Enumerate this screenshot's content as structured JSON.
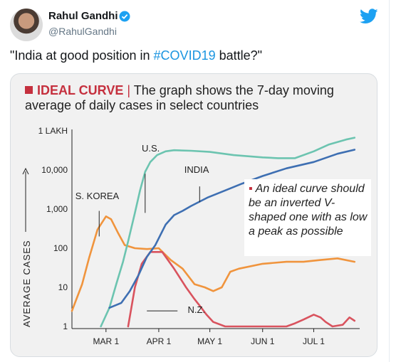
{
  "tweet": {
    "author_name": "Rahul Gandhi",
    "handle": "@RahulGandhi",
    "text_before": "\"India at good position in ",
    "hashtag": "#COVID19",
    "text_after": " battle?\""
  },
  "icons": {
    "avatar": "author-avatar",
    "verified": "verified-badge-icon",
    "platform": "twitter-bird-icon"
  },
  "chart_data": {
    "type": "line",
    "title": "IDEAL CURVE",
    "title_rest": "The graph shows the 7-day moving",
    "subtitle": "average of daily cases in select countries",
    "ylabel": "AVERAGE CASES",
    "yscale": "log",
    "ylim": [
      1,
      100000
    ],
    "yticks": [
      "1 LAKH",
      "10,000",
      "1,000",
      "100",
      "10",
      "1"
    ],
    "ytick_values": [
      100000,
      10000,
      1000,
      100,
      10,
      1
    ],
    "xticks": [
      "MAR 1",
      "APR 1",
      "MAY 1",
      "JUN 1",
      "JUL 1"
    ],
    "xlim": [
      "2020-02-10",
      "2020-07-28"
    ],
    "grid": false,
    "note": "An ideal curve should be an inverted V-shaped one with as low a peak as possible",
    "series": [
      {
        "name": "U.S.",
        "color": "#6cc4b0",
        "x": [
          "2020-02-27",
          "2020-03-03",
          "2020-03-07",
          "2020-03-11",
          "2020-03-14",
          "2020-03-18",
          "2020-03-21",
          "2020-03-24",
          "2020-03-27",
          "2020-03-31",
          "2020-04-05",
          "2020-04-10",
          "2020-04-20",
          "2020-05-01",
          "2020-05-15",
          "2020-06-01",
          "2020-06-10",
          "2020-06-20",
          "2020-07-01",
          "2020-07-10",
          "2020-07-20",
          "2020-07-25"
        ],
        "values": [
          1,
          3,
          12,
          45,
          150,
          800,
          3000,
          9000,
          16000,
          24000,
          30000,
          32000,
          31000,
          29000,
          24000,
          21000,
          20000,
          20000,
          30000,
          45000,
          60000,
          67000
        ]
      },
      {
        "name": "S. KOREA",
        "color": "#f0943d",
        "x": [
          "2020-02-10",
          "2020-02-16",
          "2020-02-20",
          "2020-02-25",
          "2020-03-01",
          "2020-03-04",
          "2020-03-08",
          "2020-03-12",
          "2020-03-18",
          "2020-03-25",
          "2020-04-01",
          "2020-04-08",
          "2020-04-15",
          "2020-04-22",
          "2020-04-28",
          "2020-05-03",
          "2020-05-08",
          "2020-05-13",
          "2020-05-18",
          "2020-06-01",
          "2020-06-15",
          "2020-06-25",
          "2020-07-05",
          "2020-07-15",
          "2020-07-25"
        ],
        "values": [
          2.5,
          12,
          55,
          300,
          650,
          550,
          250,
          120,
          100,
          95,
          100,
          50,
          30,
          12,
          10,
          8,
          10,
          25,
          30,
          40,
          45,
          45,
          50,
          55,
          45
        ]
      },
      {
        "name": "INDIA",
        "color": "#3e6fb2",
        "x": [
          "2020-03-03",
          "2020-03-10",
          "2020-03-15",
          "2020-03-20",
          "2020-03-25",
          "2020-03-30",
          "2020-04-05",
          "2020-04-10",
          "2020-04-15",
          "2020-04-20",
          "2020-04-30",
          "2020-05-10",
          "2020-05-20",
          "2020-06-01",
          "2020-06-15",
          "2020-07-01",
          "2020-07-15",
          "2020-07-25"
        ],
        "values": [
          3,
          4,
          8,
          20,
          60,
          120,
          400,
          700,
          900,
          1200,
          2000,
          3000,
          4500,
          7000,
          11000,
          16000,
          26000,
          33000
        ]
      },
      {
        "name": "N.Z.",
        "color": "#d9535e",
        "x": [
          "2020-03-14",
          "2020-03-18",
          "2020-03-22",
          "2020-03-27",
          "2020-04-03",
          "2020-04-10",
          "2020-04-17",
          "2020-04-22",
          "2020-04-26",
          "2020-04-29",
          "2020-05-03",
          "2020-05-10",
          "2020-06-01",
          "2020-06-15",
          "2020-06-20",
          "2020-06-25",
          "2020-07-01",
          "2020-07-05",
          "2020-07-08",
          "2020-07-12",
          "2020-07-18",
          "2020-07-22",
          "2020-07-25"
        ],
        "values": [
          1,
          10,
          40,
          80,
          80,
          30,
          10,
          5,
          3,
          2,
          1.3,
          1,
          1,
          1,
          1.2,
          1.5,
          2.0,
          1.7,
          1.3,
          1.0,
          1.1,
          1.7,
          1.4
        ]
      }
    ]
  }
}
